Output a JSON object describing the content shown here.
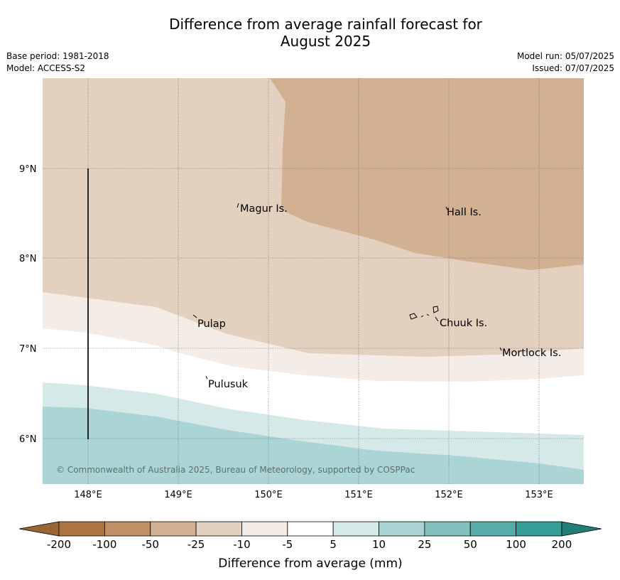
{
  "title": {
    "line1": "Difference from average rainfall forecast for",
    "line2": "August 2025"
  },
  "meta": {
    "base_period": "Base period: 1981-2018",
    "model": "Model: ACCESS-S2",
    "model_run": "Model run: 05/07/2025",
    "issued": "Issued: 07/07/2025"
  },
  "map": {
    "lat_labels": [
      "9°N",
      "8°N",
      "7°N",
      "6°N"
    ],
    "lon_labels": [
      "148°E",
      "149°E",
      "150°E",
      "151°E",
      "152°E",
      "153°E"
    ],
    "places": [
      "Magur Is.",
      "Hall Is.",
      "Pulap",
      "Chuuk Is.",
      "Mortlock Is.",
      "Pulusuk"
    ],
    "credit": "© Commonwealth of Australia 2025, Bureau of Meteorology, supported by COSPPac"
  },
  "colorbar": {
    "ticks": [
      "-200",
      "-100",
      "-50",
      "-25",
      "-10",
      "-5",
      "5",
      "10",
      "25",
      "50",
      "100",
      "200"
    ],
    "colors": [
      "#ad7641",
      "#c09067",
      "#d1b192",
      "#e3d0be",
      "#f4ede7",
      "#ffffff",
      "#d5e9e8",
      "#abd5d4",
      "#82c0bd",
      "#58aca7",
      "#339d96"
    ],
    "under_color": "#9c6535",
    "over_color": "#217f78",
    "label": "Difference from average (mm)"
  }
}
